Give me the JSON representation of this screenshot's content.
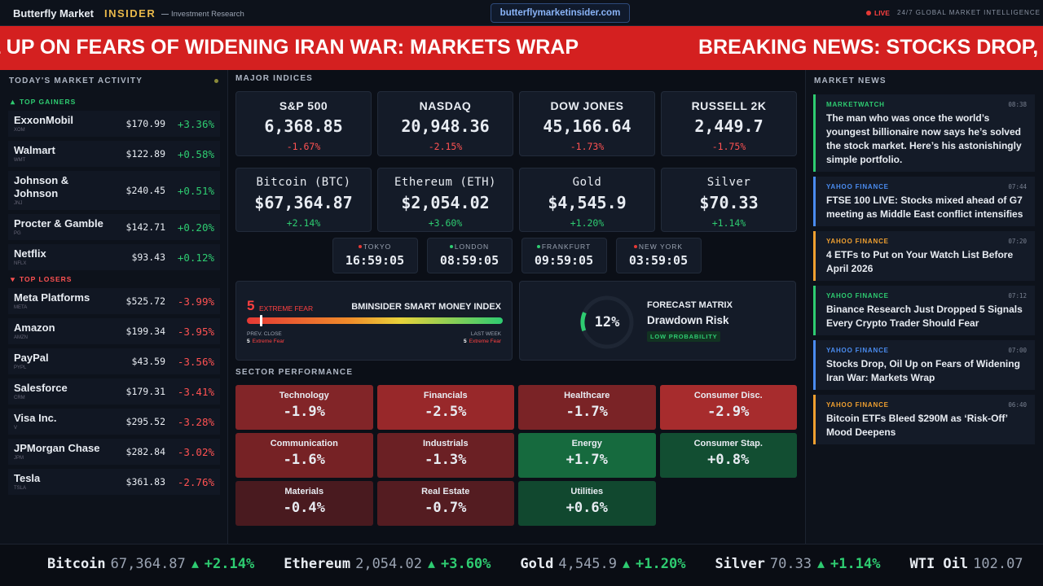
{
  "header": {
    "brand": "Butterfly Market",
    "brand_accent": "INSIDER",
    "tagline": "Investment Research",
    "url": "butterflymarketinsider.com",
    "live": "LIVE",
    "status": "24/7 GLOBAL MARKET INTELLIGENCE"
  },
  "banner": {
    "headline": "BREAKING NEWS: STOCKS DROP, OIL UP ON FEARS OF WIDENING IRAN WAR: MARKETS WRAP"
  },
  "market_activity": {
    "title": "TODAY'S MARKET ACTIVITY",
    "gainers": {
      "title": "TOP GAINERS",
      "rows": [
        {
          "name": "ExxonMobil",
          "ticker": "XOM",
          "price": "$170.99",
          "change": "+3.36%"
        },
        {
          "name": "Walmart",
          "ticker": "WMT",
          "price": "$122.89",
          "change": "+0.58%"
        },
        {
          "name": "Johnson & Johnson",
          "ticker": "JNJ",
          "price": "$240.45",
          "change": "+0.51%"
        },
        {
          "name": "Procter & Gamble",
          "ticker": "PG",
          "price": "$142.71",
          "change": "+0.20%"
        },
        {
          "name": "Netflix",
          "ticker": "NFLX",
          "price": "$93.43",
          "change": "+0.12%"
        }
      ]
    },
    "losers": {
      "title": "TOP LOSERS",
      "rows": [
        {
          "name": "Meta Platforms",
          "ticker": "META",
          "price": "$525.72",
          "change": "-3.99%"
        },
        {
          "name": "Amazon",
          "ticker": "AMZN",
          "price": "$199.34",
          "change": "-3.95%"
        },
        {
          "name": "PayPal",
          "ticker": "PYPL",
          "price": "$43.59",
          "change": "-3.56%"
        },
        {
          "name": "Salesforce",
          "ticker": "CRM",
          "price": "$179.31",
          "change": "-3.41%"
        },
        {
          "name": "Visa Inc.",
          "ticker": "V",
          "price": "$295.52",
          "change": "-3.28%"
        },
        {
          "name": "JPMorgan Chase",
          "ticker": "JPM",
          "price": "$282.84",
          "change": "-3.02%"
        },
        {
          "name": "Tesla",
          "ticker": "TSLA",
          "price": "$361.83",
          "change": "-2.76%"
        }
      ]
    }
  },
  "indices": {
    "title": "MAJOR INDICES",
    "cards": [
      {
        "name": "S&P 500",
        "value": "6,368.85",
        "change": "-1.67%"
      },
      {
        "name": "NASDAQ",
        "value": "20,948.36",
        "change": "-2.15%"
      },
      {
        "name": "DOW JONES",
        "value": "45,166.64",
        "change": "-1.73%"
      },
      {
        "name": "RUSSELL 2K",
        "value": "2,449.7",
        "change": "-1.75%"
      },
      {
        "name": "Bitcoin (BTC)",
        "value": "$67,364.87",
        "change": "+2.14%"
      },
      {
        "name": "Ethereum (ETH)",
        "value": "$2,054.02",
        "change": "+3.60%"
      },
      {
        "name": "Gold",
        "value": "$4,545.9",
        "change": "+1.20%"
      },
      {
        "name": "Silver",
        "value": "$70.33",
        "change": "+1.14%"
      }
    ]
  },
  "clocks": [
    {
      "city": "TOKYO",
      "time": "16:59:05",
      "color": "#e53935"
    },
    {
      "city": "LONDON",
      "time": "08:59:05",
      "color": "#2ecc71"
    },
    {
      "city": "FRANKFURT",
      "time": "09:59:05",
      "color": "#2ecc71"
    },
    {
      "city": "NEW YORK",
      "time": "03:59:05",
      "color": "#e53935"
    }
  ],
  "fear_index": {
    "title": "BMINSIDER SMART MONEY INDEX",
    "value": 5,
    "label": "EXTREME FEAR",
    "prev_close": {
      "title": "PREV. CLOSE",
      "value": "5",
      "label": "Extreme Fear"
    },
    "last_week": {
      "title": "LAST WEEK",
      "value": "5",
      "label": "Extreme Fear"
    }
  },
  "forecast": {
    "title": "FORECAST MATRIX",
    "subtitle": "Drawdown Risk",
    "badge": "LOW PROBABILITY",
    "value": 12,
    "label": "12%"
  },
  "sectors": {
    "title": "SECTOR PERFORMANCE",
    "items": [
      {
        "name": "Technology",
        "value": -1.9,
        "label": "-1.9%"
      },
      {
        "name": "Financials",
        "value": -2.5,
        "label": "-2.5%"
      },
      {
        "name": "Healthcare",
        "value": -1.7,
        "label": "-1.7%"
      },
      {
        "name": "Consumer Disc.",
        "value": -2.9,
        "label": "-2.9%"
      },
      {
        "name": "Communication",
        "value": -1.6,
        "label": "-1.6%"
      },
      {
        "name": "Industrials",
        "value": -1.3,
        "label": "-1.3%"
      },
      {
        "name": "Energy",
        "value": 1.7,
        "label": "+1.7%"
      },
      {
        "name": "Consumer Stap.",
        "value": 0.8,
        "label": "+0.8%"
      },
      {
        "name": "Materials",
        "value": -0.4,
        "label": "-0.4%"
      },
      {
        "name": "Real Estate",
        "value": -0.7,
        "label": "-0.7%"
      },
      {
        "name": "Utilities",
        "value": 0.6,
        "label": "+0.6%"
      }
    ]
  },
  "news": {
    "title": "MARKET NEWS",
    "items": [
      {
        "source": "MARKETWATCH",
        "time": "08:38",
        "headline": "The man who was once the world’s youngest billionaire now says he’s solved the stock market. Here’s his astonishingly simple portfolio.",
        "color": "#2ecc71"
      },
      {
        "source": "YAHOO FINANCE",
        "time": "07:44",
        "headline": "FTSE 100 LIVE: Stocks mixed ahead of G7 meeting as Middle East conflict intensifies",
        "color": "#4a8cf0"
      },
      {
        "source": "YAHOO FINANCE",
        "time": "07:20",
        "headline": "4 ETFs to Put on Your Watch List Before April 2026",
        "color": "#f0a030"
      },
      {
        "source": "YAHOO FINANCE",
        "time": "07:12",
        "headline": "Binance Research Just Dropped 5 Signals Every Crypto Trader Should Fear",
        "color": "#2ecc71"
      },
      {
        "source": "YAHOO FINANCE",
        "time": "07:00",
        "headline": "Stocks Drop, Oil Up on Fears of Widening Iran War: Markets Wrap",
        "color": "#4a8cf0"
      },
      {
        "source": "YAHOO FINANCE",
        "time": "06:40",
        "headline": "Bitcoin ETFs Bleed $290M as ‘Risk-Off’ Mood Deepens",
        "color": "#f0a030"
      }
    ]
  },
  "ticker": [
    {
      "name": "Bitcoin",
      "price": "67,364.87",
      "change": "+2.14%"
    },
    {
      "name": "Ethereum",
      "price": "2,054.02",
      "change": "+3.60%"
    },
    {
      "name": "Gold",
      "price": "4,545.9",
      "change": "+1.20%"
    },
    {
      "name": "Silver",
      "price": "70.33",
      "change": "+1.14%"
    },
    {
      "name": "WTI Oil",
      "price": "102.07"
    }
  ]
}
